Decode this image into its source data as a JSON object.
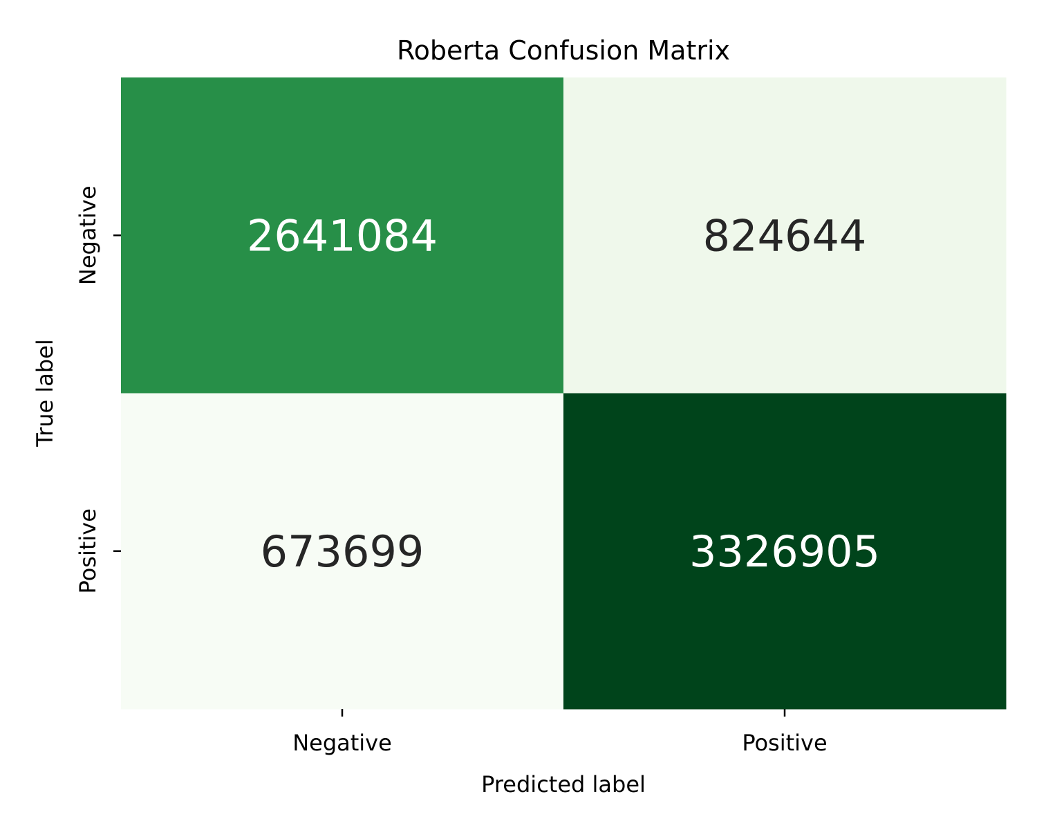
{
  "chart_data": {
    "type": "heatmap",
    "title": "Roberta Confusion Matrix",
    "xlabel": "Predicted label",
    "ylabel": "True label",
    "x_categories": [
      "Negative",
      "Positive"
    ],
    "y_categories": [
      "Negative",
      "Positive"
    ],
    "values": [
      [
        2641084,
        824644
      ],
      [
        673699,
        3326905
      ]
    ],
    "colormap": "Greens",
    "cell_colors": [
      [
        "#278f48",
        "#eff8eb"
      ],
      [
        "#f7fcf5",
        "#00441b"
      ]
    ],
    "text_colors": [
      [
        "#ffffff",
        "#262626"
      ],
      [
        "#262626",
        "#ffffff"
      ]
    ],
    "colorbar": false
  }
}
